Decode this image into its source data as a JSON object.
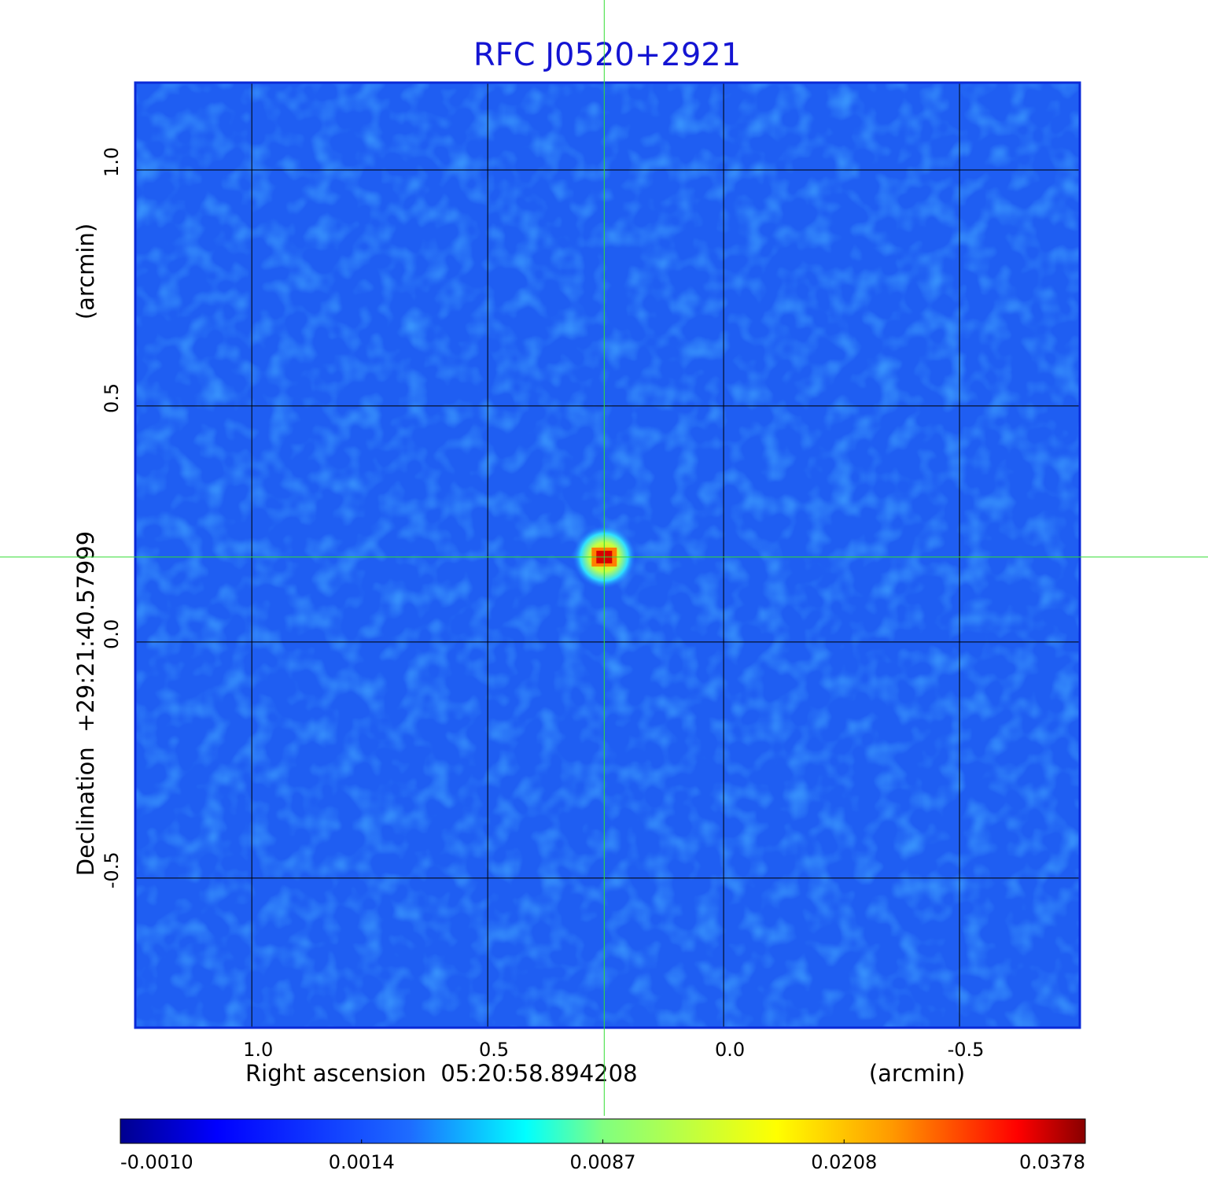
{
  "chart_data": {
    "type": "image",
    "title": "RFC J0520+2921",
    "x_label": "Right ascension  05:20:58.894208",
    "x_unit": "(arcmin)",
    "y_label": "Declination  +29:21:40.57999",
    "y_unit": "(arcmin)",
    "xlim": [
      1.247,
      -0.755
    ],
    "ylim": [
      -0.817,
      1.185
    ],
    "xticks": [
      {
        "value": 1,
        "label": "1.0"
      },
      {
        "value": 0.5,
        "label": "0.5"
      },
      {
        "value": 0,
        "label": "0.0"
      },
      {
        "value": -0.5,
        "label": "-0.5"
      }
    ],
    "yticks": [
      {
        "value": 1,
        "label": "1.0"
      },
      {
        "value": 0.5,
        "label": "0.5"
      },
      {
        "value": 0,
        "label": "0.0"
      },
      {
        "value": -0.5,
        "label": "-0.5"
      }
    ],
    "grid": true,
    "source": {
      "x": 0.253,
      "y": 0.18,
      "peak": 0.0378
    },
    "colorbar_ticks": [
      {
        "value": -0.001,
        "label": "-0.0010"
      },
      {
        "value": 0.0014,
        "label": "0.0014"
      },
      {
        "value": 0.0087,
        "label": "0.0087"
      },
      {
        "value": 0.0208,
        "label": "0.0208"
      },
      {
        "value": 0.0378,
        "label": "0.0378"
      }
    ]
  }
}
